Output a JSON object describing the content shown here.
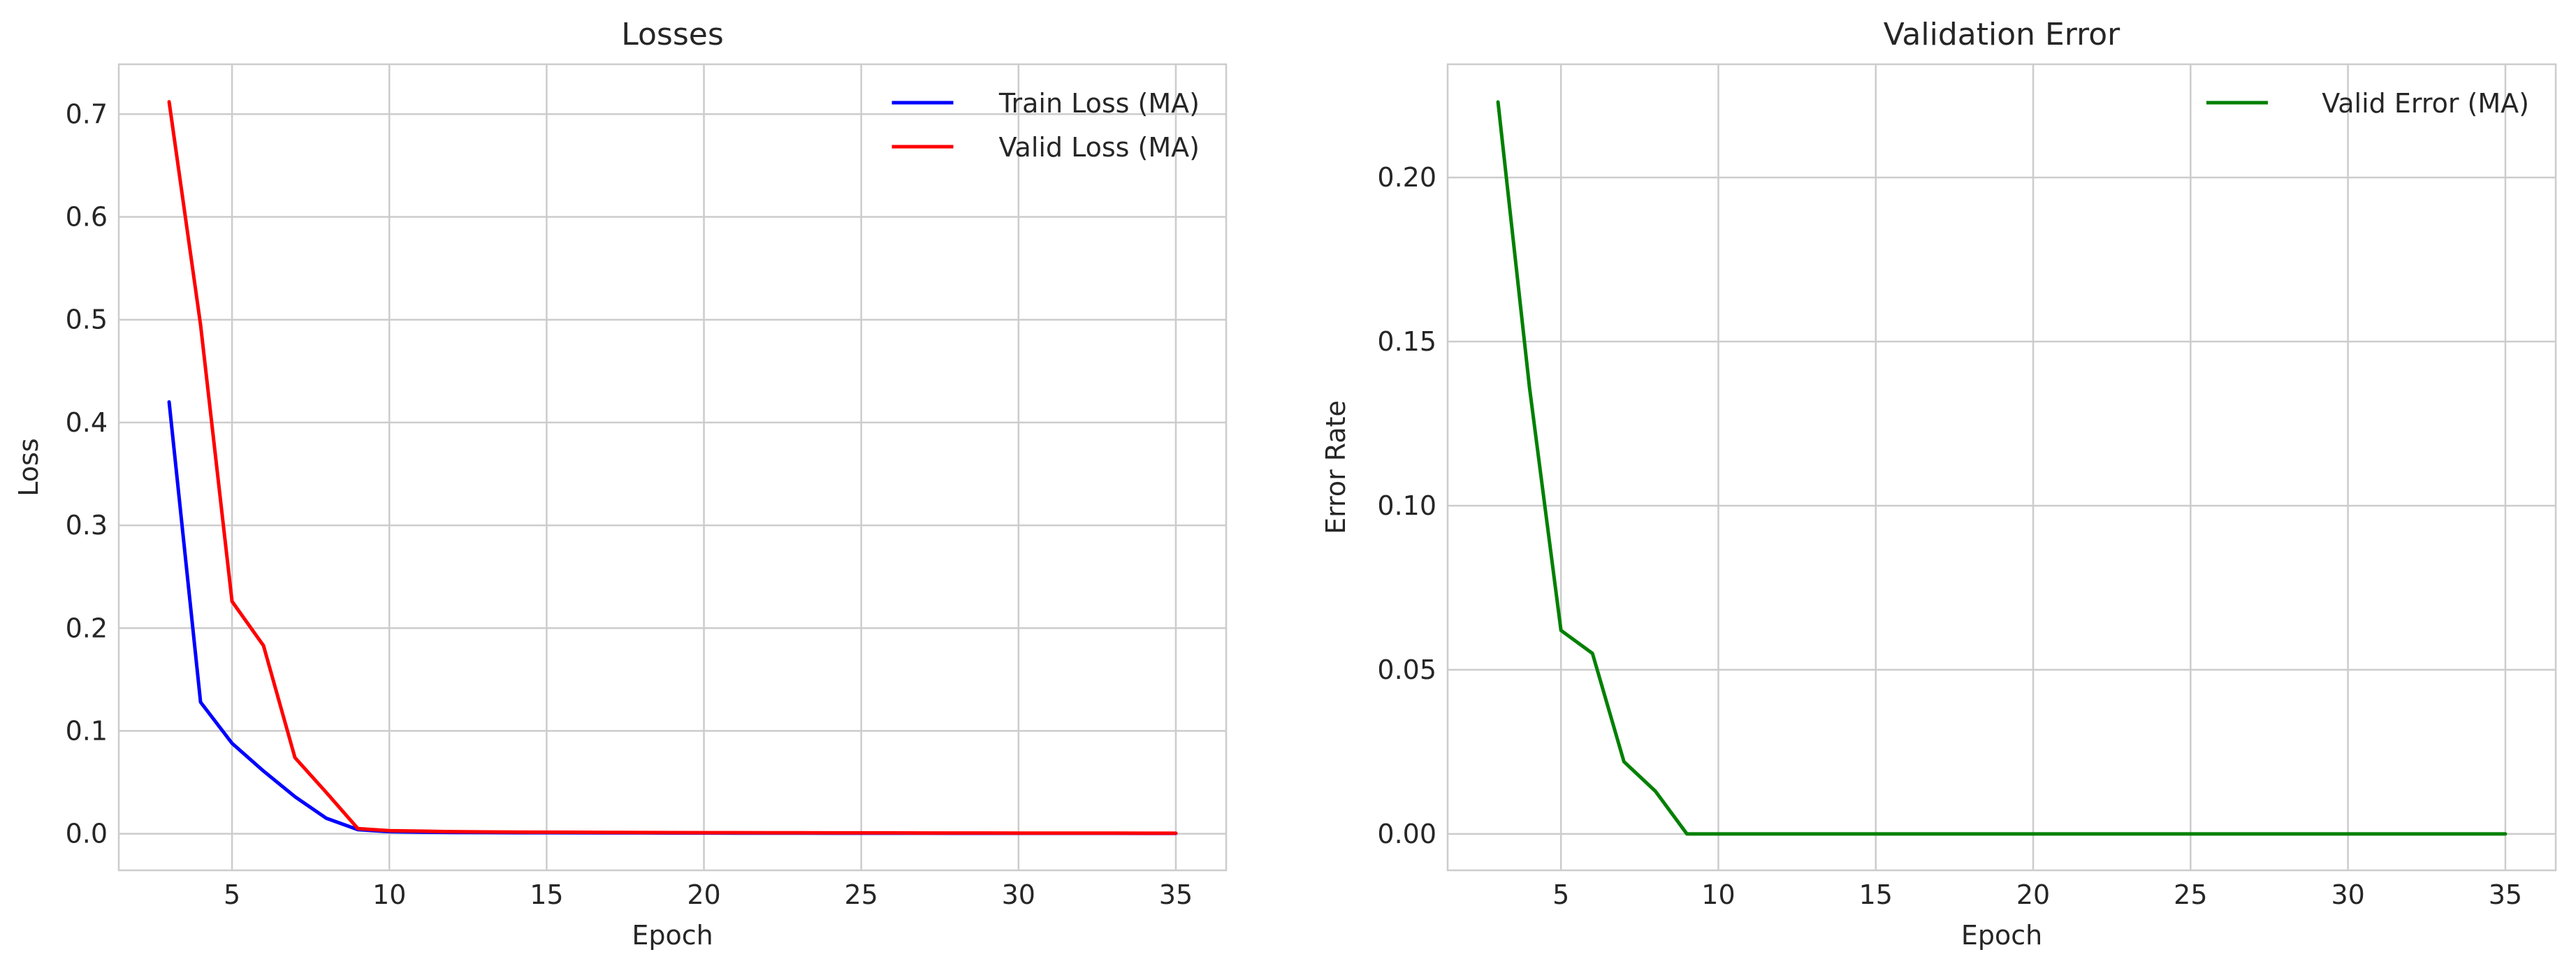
{
  "chart_data": [
    {
      "type": "line",
      "title": "Losses",
      "xlabel": "Epoch",
      "ylabel": "Loss",
      "xlim": [
        1.4,
        36.6
      ],
      "ylim": [
        -0.0356,
        0.7485
      ],
      "xticks": [
        5,
        10,
        15,
        20,
        25,
        30,
        35
      ],
      "yticks": [
        0.0,
        0.1,
        0.2,
        0.3,
        0.4,
        0.5,
        0.6,
        0.7
      ],
      "xtick_labels": [
        "5",
        "10",
        "15",
        "20",
        "25",
        "30",
        "35"
      ],
      "ytick_labels": [
        "0.0",
        "0.1",
        "0.2",
        "0.3",
        "0.4",
        "0.5",
        "0.6",
        "0.7"
      ],
      "grid": true,
      "legend_position": "top-right",
      "x": [
        3,
        4,
        5,
        6,
        7,
        8,
        9,
        10,
        11,
        12,
        13,
        14,
        15,
        16,
        17,
        18,
        19,
        20,
        21,
        22,
        23,
        24,
        25,
        26,
        27,
        28,
        29,
        30,
        31,
        32,
        33,
        34,
        35
      ],
      "series": [
        {
          "name": "Train Loss (MA)",
          "color": "#0000ff",
          "values": [
            0.42,
            0.128,
            0.088,
            0.061,
            0.036,
            0.015,
            0.004,
            0.002,
            0.0015,
            0.0013,
            0.0012,
            0.001,
            0.001,
            0.0009,
            0.0008,
            0.0008,
            0.0007,
            0.0007,
            0.0006,
            0.0006,
            0.0006,
            0.0005,
            0.0005,
            0.0005,
            0.0005,
            0.0004,
            0.0004,
            0.0004,
            0.0004,
            0.0004,
            0.0004,
            0.0003,
            0.0003
          ]
        },
        {
          "name": "Valid Loss (MA)",
          "color": "#ff0000",
          "values": [
            0.712,
            0.495,
            0.226,
            0.183,
            0.074,
            0.04,
            0.005,
            0.003,
            0.0025,
            0.002,
            0.0018,
            0.0016,
            0.0015,
            0.0014,
            0.0013,
            0.0012,
            0.0011,
            0.001,
            0.001,
            0.0009,
            0.0009,
            0.0008,
            0.0008,
            0.0008,
            0.0007,
            0.0007,
            0.0007,
            0.0006,
            0.0006,
            0.0006,
            0.0006,
            0.0005,
            0.0005
          ]
        }
      ]
    },
    {
      "type": "line",
      "title": "Validation Error",
      "xlabel": "Epoch",
      "ylabel": "Error Rate",
      "xlim": [
        1.4,
        36.6
      ],
      "ylim": [
        -0.0111,
        0.2345
      ],
      "xticks": [
        5,
        10,
        15,
        20,
        25,
        30,
        35
      ],
      "yticks": [
        0.0,
        0.05,
        0.1,
        0.15,
        0.2
      ],
      "xtick_labels": [
        "5",
        "10",
        "15",
        "20",
        "25",
        "30",
        "35"
      ],
      "ytick_labels": [
        "0.00",
        "0.05",
        "0.10",
        "0.15",
        "0.20"
      ],
      "grid": true,
      "legend_position": "top-right",
      "x": [
        3,
        4,
        5,
        6,
        7,
        8,
        9,
        10,
        11,
        12,
        13,
        14,
        15,
        16,
        17,
        18,
        19,
        20,
        21,
        22,
        23,
        24,
        25,
        26,
        27,
        28,
        29,
        30,
        31,
        32,
        33,
        34,
        35
      ],
      "series": [
        {
          "name": "Valid Error (MA)",
          "color": "#008000",
          "values": [
            0.223,
            0.136,
            0.062,
            0.055,
            0.022,
            0.013,
            0.0,
            0.0,
            0.0,
            0.0,
            0.0,
            0.0,
            0.0,
            0.0,
            0.0,
            0.0,
            0.0,
            0.0,
            0.0,
            0.0,
            0.0,
            0.0,
            0.0,
            0.0,
            0.0,
            0.0,
            0.0,
            0.0,
            0.0,
            0.0,
            0.0,
            0.0,
            0.0
          ]
        }
      ]
    }
  ]
}
